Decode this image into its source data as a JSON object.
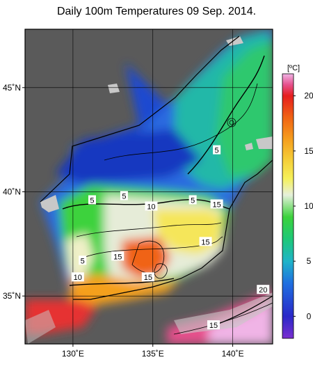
{
  "title": "Daily 100m Temperatures 09 Sep. 2014.",
  "map": {
    "lon_range": [
      127.0,
      142.5
    ],
    "lat_range": [
      32.7,
      47.8
    ],
    "lon_ticks": [
      {
        "value": 130,
        "label": "130˚E"
      },
      {
        "value": 135,
        "label": "135˚E"
      },
      {
        "value": 140,
        "label": "140˚E"
      }
    ],
    "lat_ticks": [
      {
        "value": 35,
        "label": "35˚N"
      },
      {
        "value": 40,
        "label": "40˚N"
      },
      {
        "value": 45,
        "label": "45˚N"
      }
    ],
    "grid": true,
    "colors": {
      "land": "#5a5a5a",
      "missing": "#c8c8c8",
      "frame": "#000000"
    }
  },
  "colorbar": {
    "unit": "[ºC]",
    "range": [
      -2,
      22
    ],
    "ticks": [
      {
        "value": 0,
        "label": "0"
      },
      {
        "value": 5,
        "label": "5"
      },
      {
        "value": 10,
        "label": "10"
      },
      {
        "value": 15,
        "label": "15"
      },
      {
        "value": 20,
        "label": "20"
      }
    ],
    "stops": [
      {
        "value": -2,
        "color": "#7a2fd0"
      },
      {
        "value": 0,
        "color": "#2a28c8"
      },
      {
        "value": 3,
        "color": "#1f6fe0"
      },
      {
        "value": 5,
        "color": "#1fb4c8"
      },
      {
        "value": 7,
        "color": "#1ec878"
      },
      {
        "value": 9,
        "color": "#3cd23c"
      },
      {
        "value": 11,
        "color": "#e6f0dc"
      },
      {
        "value": 12.5,
        "color": "#f5f05a"
      },
      {
        "value": 14,
        "color": "#f5d23c"
      },
      {
        "value": 16,
        "color": "#f5a01e"
      },
      {
        "value": 18,
        "color": "#f06414"
      },
      {
        "value": 20,
        "color": "#e61e1e"
      },
      {
        "value": 21,
        "color": "#e6508c"
      },
      {
        "value": 22,
        "color": "#f0b4e6"
      }
    ]
  },
  "contour_labels": [
    {
      "text": "5",
      "lon": 139.0,
      "lat": 42.0
    },
    {
      "text": "5",
      "lon": 131.2,
      "lat": 39.6
    },
    {
      "text": "5",
      "lon": 133.2,
      "lat": 39.8
    },
    {
      "text": "10",
      "lon": 134.9,
      "lat": 39.3
    },
    {
      "text": "5",
      "lon": 137.5,
      "lat": 39.6
    },
    {
      "text": "15",
      "lon": 139.0,
      "lat": 39.4
    },
    {
      "text": "5",
      "lon": 130.6,
      "lat": 36.7
    },
    {
      "text": "15",
      "lon": 132.8,
      "lat": 36.9
    },
    {
      "text": "10",
      "lon": 130.3,
      "lat": 35.9
    },
    {
      "text": "15",
      "lon": 134.7,
      "lat": 35.9
    },
    {
      "text": "15",
      "lon": 138.3,
      "lat": 37.6
    },
    {
      "text": "20",
      "lon": 141.9,
      "lat": 35.3
    },
    {
      "text": "15",
      "lon": 138.8,
      "lat": 33.6
    }
  ]
}
